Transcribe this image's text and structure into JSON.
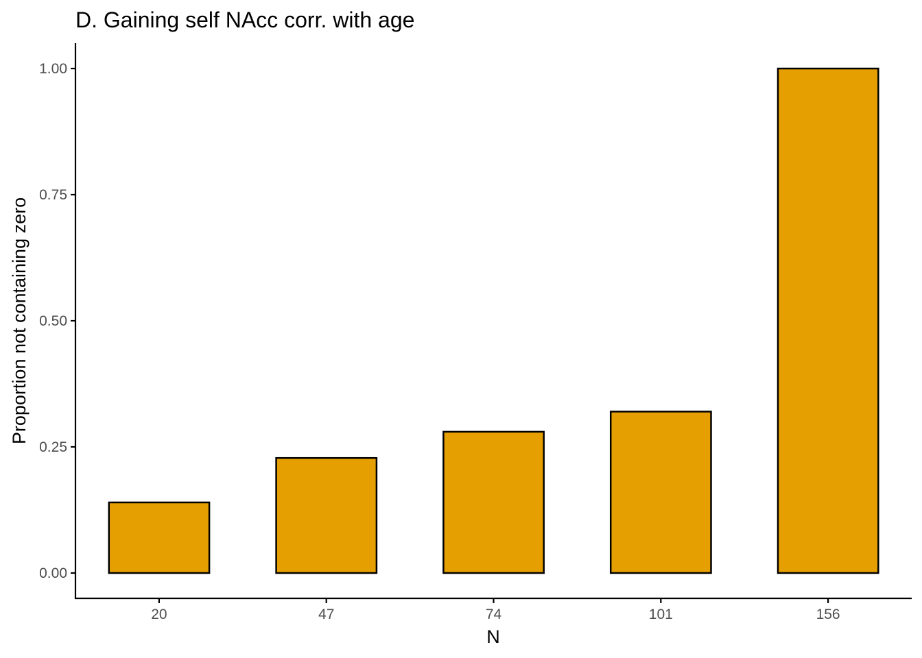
{
  "chart_data": {
    "type": "bar",
    "title": "D. Gaining self NAcc corr. with age",
    "xlabel": "N",
    "ylabel": "Proportion not containing zero",
    "categories": [
      "20",
      "47",
      "74",
      "101",
      "156"
    ],
    "values": [
      0.14,
      0.228,
      0.28,
      0.32,
      1.0
    ],
    "ylim": [
      -0.05,
      1.05
    ],
    "yticks": [
      0,
      0.25,
      0.5,
      0.75,
      1.0
    ],
    "ytick_labels": [
      "0.00",
      "0.25",
      "0.50",
      "0.75",
      "1.00"
    ],
    "grid": false,
    "legend": "none",
    "bar_color": "#E69F00",
    "edge_color": "#000000"
  }
}
